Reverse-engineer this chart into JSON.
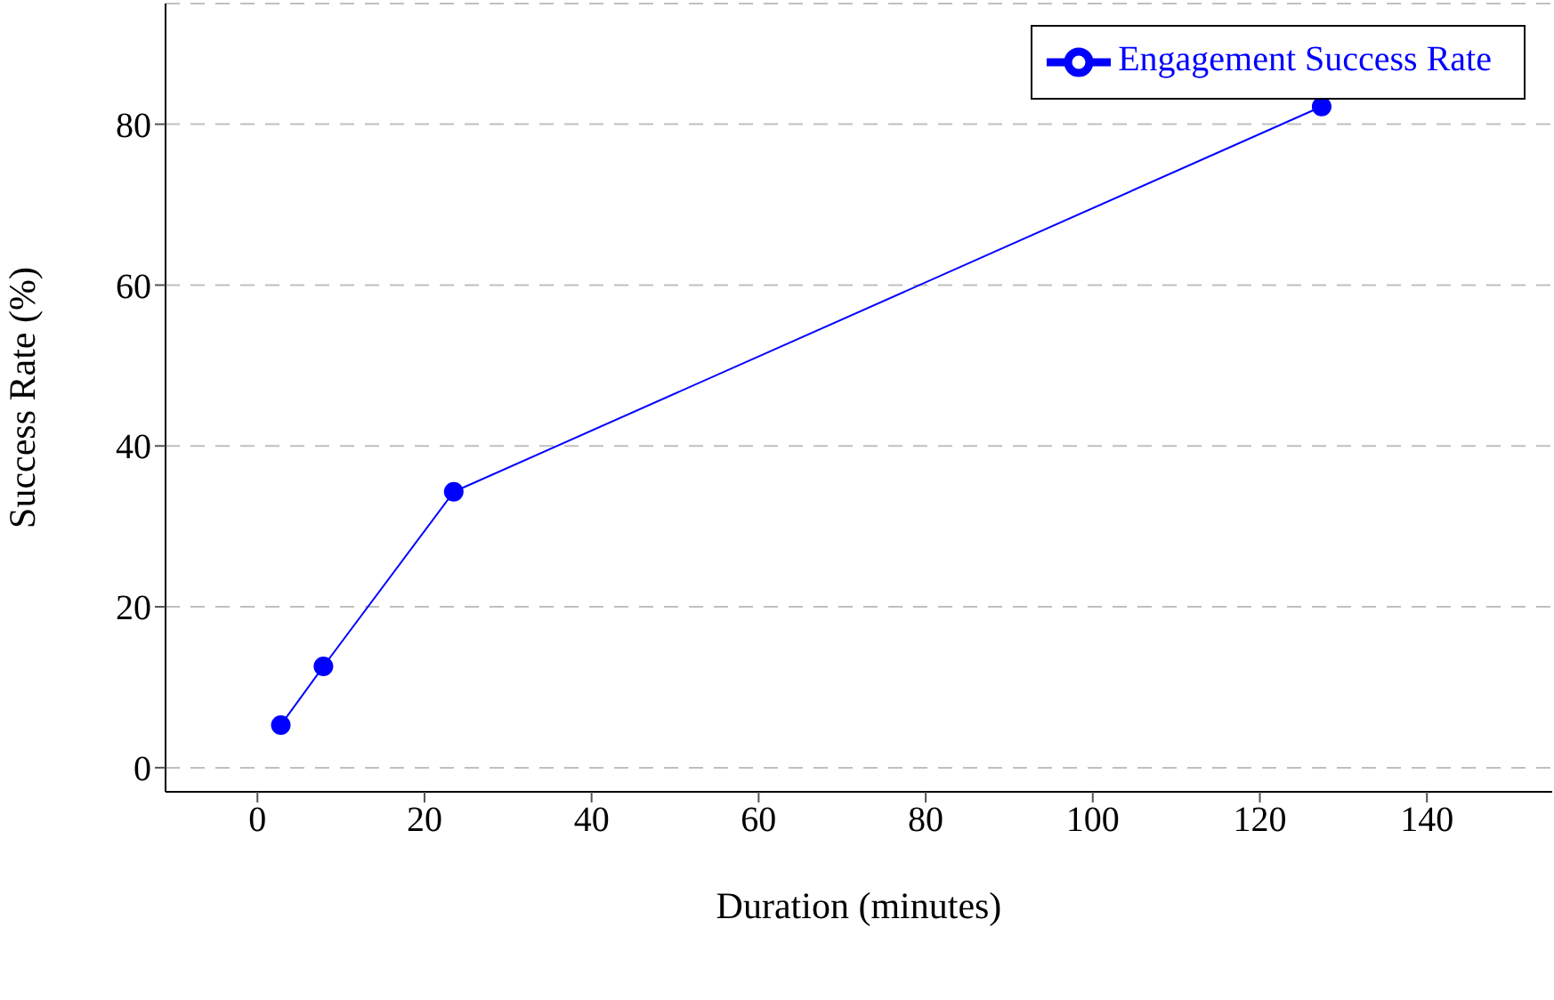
{
  "chart_data": {
    "type": "line",
    "xlabel": "Duration (minutes)",
    "ylabel": "Success Rate (%)",
    "x": [
      2.8,
      7.9,
      23.5,
      127.4
    ],
    "series": [
      {
        "name": "Engagement Success Rate",
        "color": "#0000ff",
        "values": [
          5.3,
          12.6,
          34.3,
          82.2
        ]
      }
    ],
    "xlim": [
      -11,
      155
    ],
    "xticks": [
      0,
      20,
      40,
      60,
      80,
      100,
      120,
      140
    ],
    "ylim": [
      -3,
      95
    ],
    "yticks": [
      0,
      20,
      40,
      60,
      80
    ],
    "grid": "y",
    "legend": "top right",
    "marker": "circle",
    "line_style": "solid"
  }
}
